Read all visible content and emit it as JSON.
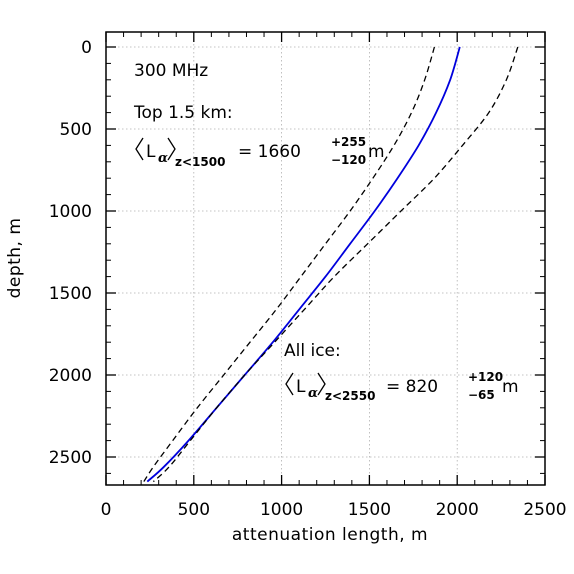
{
  "chart_data": {
    "type": "line",
    "xlabel": "attenuation length, m",
    "ylabel": "depth, m",
    "xlim": [
      0,
      2500
    ],
    "ylim": [
      0,
      2700
    ],
    "y_inverted": true,
    "x_ticks": [
      "0",
      "500",
      "1000",
      "1500",
      "2000",
      "2500"
    ],
    "y_ticks": [
      "0",
      "500",
      "1000",
      "1500",
      "2000",
      "2500"
    ],
    "grid": true,
    "series": [
      {
        "style": "solid",
        "color": "#0000dd",
        "points": [
          [
            2015,
            0
          ],
          [
            1960,
            200
          ],
          [
            1880,
            400
          ],
          [
            1780,
            600
          ],
          [
            1660,
            800
          ],
          [
            1530,
            1000
          ],
          [
            1390,
            1200
          ],
          [
            1250,
            1400
          ],
          [
            1100,
            1600
          ],
          [
            950,
            1800
          ],
          [
            790,
            2000
          ],
          [
            630,
            2200
          ],
          [
            470,
            2400
          ],
          [
            330,
            2560
          ],
          [
            235,
            2650
          ]
        ]
      },
      {
        "style": "dashed",
        "color": "#000000",
        "points": [
          [
            1870,
            0
          ],
          [
            1815,
            200
          ],
          [
            1740,
            400
          ],
          [
            1640,
            600
          ],
          [
            1520,
            800
          ],
          [
            1390,
            1000
          ],
          [
            1250,
            1200
          ],
          [
            1110,
            1400
          ],
          [
            970,
            1600
          ],
          [
            820,
            1800
          ],
          [
            670,
            2000
          ],
          [
            520,
            2200
          ],
          [
            380,
            2400
          ],
          [
            270,
            2560
          ],
          [
            215,
            2650
          ]
        ]
      },
      {
        "style": "dashed",
        "color": "#000000",
        "points": [
          [
            2345,
            0
          ],
          [
            2280,
            200
          ],
          [
            2180,
            400
          ],
          [
            2030,
            600
          ],
          [
            1870,
            800
          ],
          [
            1680,
            1000
          ],
          [
            1490,
            1200
          ],
          [
            1300,
            1400
          ],
          [
            1130,
            1600
          ],
          [
            960,
            1800
          ],
          [
            790,
            2000
          ],
          [
            630,
            2200
          ],
          [
            480,
            2400
          ],
          [
            360,
            2560
          ],
          [
            270,
            2650
          ]
        ]
      }
    ],
    "annotations": {
      "freq": "300 MHz",
      "top_title": "Top 1.5 km:",
      "top_L": "L",
      "top_sub": "α",
      "top_cond": "z<1500",
      "top_eq": "=  1660",
      "top_sup": "+255",
      "top_low": "−120",
      "top_unit": "m",
      "all_title": "All ice:",
      "all_L": "L",
      "all_sub": "α",
      "all_cond": "z<2550",
      "all_eq": "=  820",
      "all_sup": "+120",
      "all_low": "−65",
      "all_unit": "m"
    }
  }
}
